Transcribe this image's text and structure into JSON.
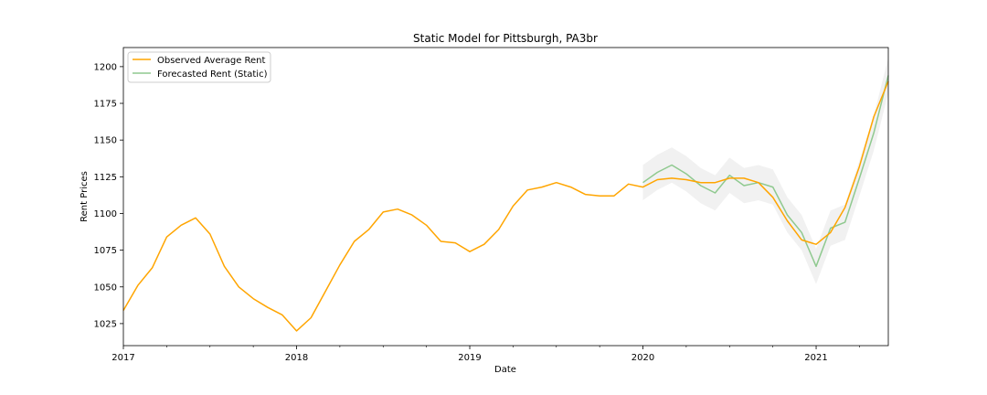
{
  "chart_data": {
    "type": "line",
    "title": "Static Model for Pittsburgh, PA3br",
    "xlabel": "Date",
    "ylabel": "Rent Prices",
    "xlim": [
      "2017-01",
      "2021-06"
    ],
    "ylim": [
      1010,
      1213
    ],
    "x_major_ticks": [
      "2017",
      "2018",
      "2019",
      "2020",
      "2021"
    ],
    "y_ticks": [
      1025,
      1050,
      1075,
      1100,
      1125,
      1150,
      1175,
      1200
    ],
    "grid": false,
    "legend_position": "top-left",
    "confidence_band": true,
    "series": [
      {
        "name": "Observed Average Rent",
        "color": "#ffa500",
        "x": [
          "2017-01",
          "2017-02",
          "2017-03",
          "2017-04",
          "2017-05",
          "2017-06",
          "2017-07",
          "2017-08",
          "2017-09",
          "2017-10",
          "2017-11",
          "2017-12",
          "2018-01",
          "2018-02",
          "2018-03",
          "2018-04",
          "2018-05",
          "2018-06",
          "2018-07",
          "2018-08",
          "2018-09",
          "2018-10",
          "2018-11",
          "2018-12",
          "2019-01",
          "2019-02",
          "2019-03",
          "2019-04",
          "2019-05",
          "2019-06",
          "2019-07",
          "2019-08",
          "2019-09",
          "2019-10",
          "2019-11",
          "2019-12",
          "2020-01",
          "2020-02",
          "2020-03",
          "2020-04",
          "2020-05",
          "2020-06",
          "2020-07",
          "2020-08",
          "2020-09",
          "2020-10",
          "2020-11",
          "2020-12",
          "2021-01",
          "2021-02",
          "2021-03",
          "2021-04",
          "2021-05",
          "2021-06"
        ],
        "values": [
          1034,
          1051,
          1063,
          1084,
          1092,
          1097,
          1086,
          1064,
          1050,
          1042,
          1036,
          1031,
          1020,
          1029,
          1047,
          1065,
          1081,
          1089,
          1101,
          1103,
          1099,
          1092,
          1081,
          1080,
          1074,
          1079,
          1089,
          1105,
          1116,
          1118,
          1121,
          1118,
          1113,
          1112,
          1112,
          1120,
          1118,
          1123,
          1124,
          1123,
          1121,
          1121,
          1124,
          1124,
          1121,
          1111,
          1095,
          1082,
          1079,
          1087,
          1104,
          1132,
          1166,
          1190
        ]
      },
      {
        "name": "Forecasted Rent (Static)",
        "color": "#8fc98f",
        "x": [
          "2020-01",
          "2020-02",
          "2020-03",
          "2020-04",
          "2020-05",
          "2020-06",
          "2020-07",
          "2020-08",
          "2020-09",
          "2020-10",
          "2020-11",
          "2020-12",
          "2021-01",
          "2021-02",
          "2021-03",
          "2021-04",
          "2021-05",
          "2021-06"
        ],
        "values": [
          1121,
          1128,
          1133,
          1127,
          1119,
          1114,
          1126,
          1119,
          1121,
          1118,
          1099,
          1087,
          1064,
          1090,
          1094,
          1124,
          1155,
          1194
        ],
        "lower": [
          1109,
          1116,
          1121,
          1115,
          1107,
          1102,
          1114,
          1107,
          1109,
          1106,
          1087,
          1075,
          1052,
          1078,
          1082,
          1112,
          1143,
          1182
        ],
        "upper": [
          1133,
          1140,
          1145,
          1139,
          1131,
          1126,
          1138,
          1131,
          1133,
          1130,
          1111,
          1099,
          1076,
          1102,
          1106,
          1136,
          1167,
          1206
        ]
      }
    ]
  }
}
